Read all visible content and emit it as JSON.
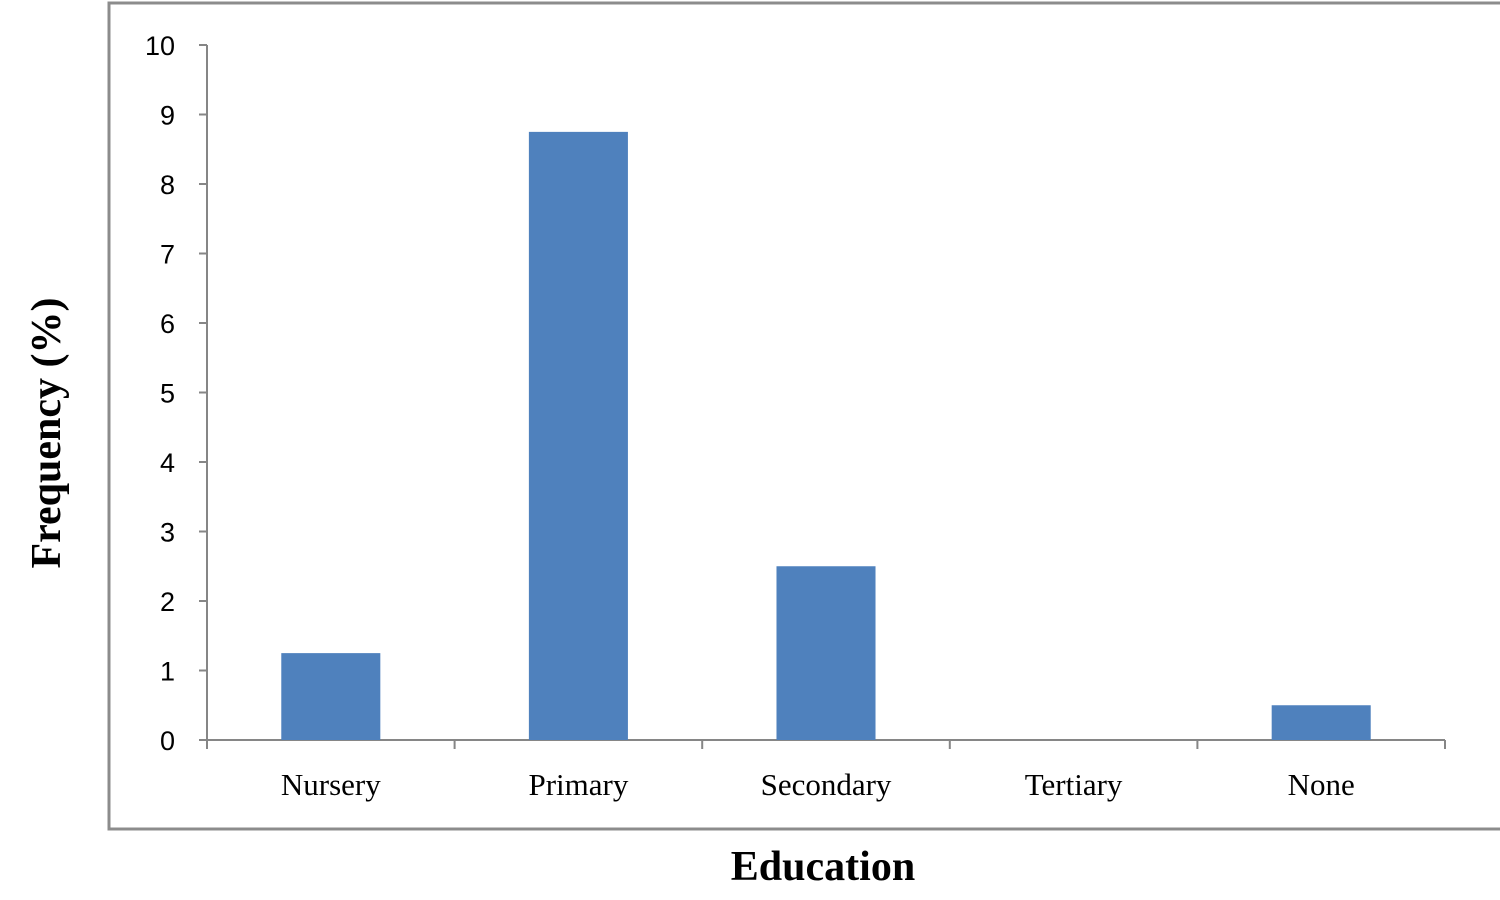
{
  "chart_data": {
    "type": "bar",
    "title": "",
    "xlabel": "Education",
    "ylabel": "Frequency (%)",
    "categories": [
      "Nursery",
      "Primary",
      "Secondary",
      "Tertiary",
      "None"
    ],
    "values": [
      1.25,
      8.75,
      2.5,
      0,
      0.5
    ],
    "ylim": [
      0,
      10
    ],
    "yticks": [
      "0",
      "1",
      "2",
      "3",
      "4",
      "5",
      "6",
      "7",
      "8",
      "9",
      "10"
    ],
    "grid": false,
    "legend": "none",
    "bar_color": "#4F81BD",
    "axis_color": "#868686",
    "frame_color": "#8C8C8C"
  }
}
